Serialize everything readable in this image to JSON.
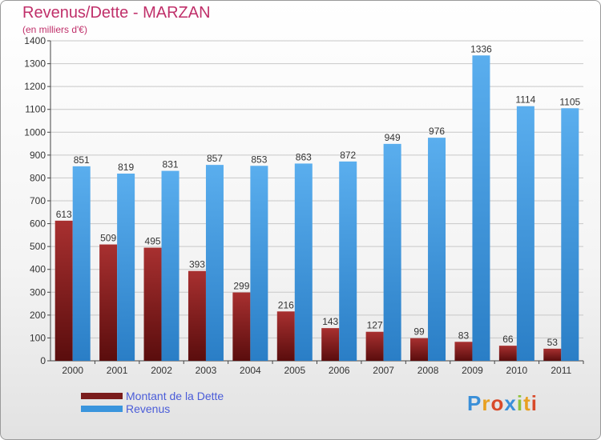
{
  "chart_data": {
    "type": "bar",
    "title": "Revenus/Dette - MARZAN",
    "subtitle": "(en milliers d'€)",
    "categories": [
      "2000",
      "2001",
      "2002",
      "2003",
      "2004",
      "2005",
      "2006",
      "2007",
      "2008",
      "2009",
      "2010",
      "2011"
    ],
    "series": [
      {
        "name": "Montant de la Dette",
        "color": "#7a1c1c",
        "values": [
          613,
          509,
          495,
          393,
          299,
          216,
          143,
          127,
          99,
          83,
          66,
          53
        ]
      },
      {
        "name": "Revenus",
        "color": "#3a95dd",
        "values": [
          851,
          819,
          831,
          857,
          853,
          863,
          872,
          949,
          976,
          1336,
          1114,
          1105
        ]
      }
    ],
    "ylim": [
      0,
      1400
    ],
    "yticks": [
      0,
      100,
      200,
      300,
      400,
      500,
      600,
      700,
      800,
      900,
      1000,
      1100,
      1200,
      1300,
      1400
    ],
    "grid": true,
    "legend_position": "bottom-left"
  },
  "logo": {
    "text": "Proxiti",
    "letters": [
      {
        "ch": "P",
        "color": "#3a8fd8"
      },
      {
        "ch": "r",
        "color": "#e8a020"
      },
      {
        "ch": "o",
        "color": "#d84a2a"
      },
      {
        "ch": "x",
        "color": "#3a8fd8"
      },
      {
        "ch": "i",
        "color": "#8fc23a"
      },
      {
        "ch": "t",
        "color": "#e8a020"
      },
      {
        "ch": "i",
        "color": "#d84a2a"
      }
    ]
  }
}
